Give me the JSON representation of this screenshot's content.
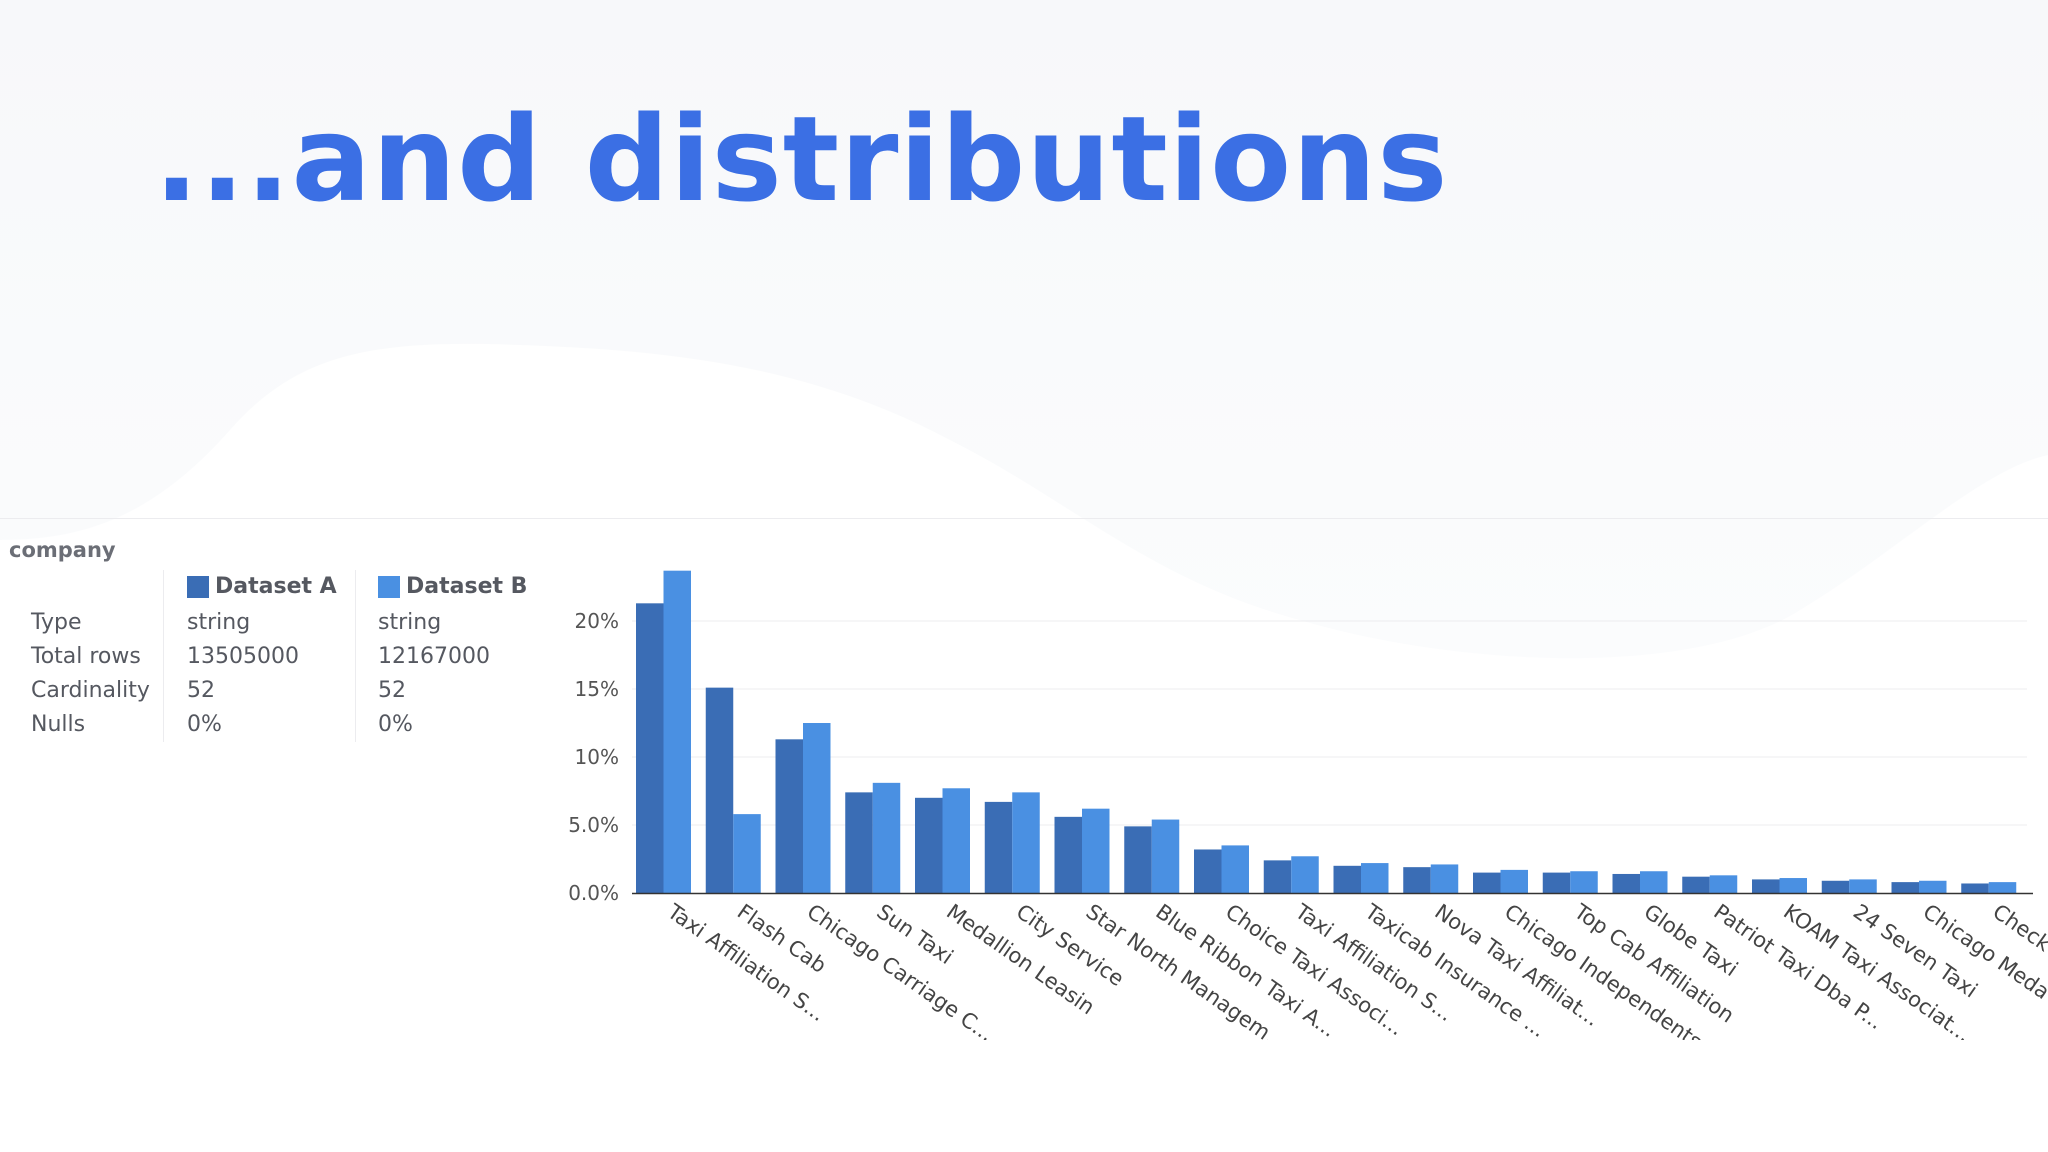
{
  "slide": {
    "title": "...and distributions"
  },
  "column": {
    "name": "company",
    "datasets": [
      {
        "name": "Dataset A",
        "color": "#3a6db5",
        "type": "string",
        "total_rows": "13505000",
        "cardinality": "52",
        "nulls": "0%"
      },
      {
        "name": "Dataset B",
        "color": "#4a90e2",
        "type": "string",
        "total_rows": "12167000",
        "cardinality": "52",
        "nulls": "0%"
      }
    ],
    "row_labels": {
      "type": "Type",
      "total_rows": "Total rows",
      "cardinality": "Cardinality",
      "nulls": "Nulls"
    }
  },
  "chart_data": {
    "type": "bar",
    "categories": [
      "Taxi Affiliation S...",
      "Flash Cab",
      "Chicago Carriage C...",
      "Sun Taxi",
      "Medallion Leasin",
      "City Service",
      "Star North Managem...",
      "Blue Ribbon Taxi A...",
      "Choice Taxi Associ...",
      "Taxi Affiliation S...",
      "Taxicab Insurance ...",
      "Nova Taxi Affiliat...",
      "Chicago Independents",
      "Top Cab Affiliation",
      "Globe Taxi",
      "Patriot Taxi Dba P...",
      "KOAM Taxi Associat...",
      "24 Seven Taxi",
      "Chicago Meda",
      "Check"
    ],
    "series": [
      {
        "name": "Dataset A",
        "values": [
          21.3,
          15.1,
          11.3,
          7.4,
          7.0,
          6.7,
          5.6,
          4.9,
          3.2,
          2.4,
          2.0,
          1.9,
          1.5,
          1.5,
          1.4,
          1.2,
          1.0,
          0.9,
          0.8,
          0.7
        ]
      },
      {
        "name": "Dataset B",
        "values": [
          23.7,
          5.8,
          12.5,
          8.1,
          7.7,
          7.4,
          6.2,
          5.4,
          3.5,
          2.7,
          2.2,
          2.1,
          1.7,
          1.6,
          1.6,
          1.3,
          1.1,
          1.0,
          0.9,
          0.8
        ]
      }
    ],
    "ylim": [
      0,
      25
    ],
    "yticks": [
      "0.0%",
      "5.0%",
      "10%",
      "15%",
      "20%"
    ],
    "ytick_values": [
      0,
      5,
      10,
      15,
      20
    ],
    "grid": true,
    "colors": {
      "grid": "#ececef",
      "axis": "#333333",
      "tick_label": "#555555"
    }
  }
}
